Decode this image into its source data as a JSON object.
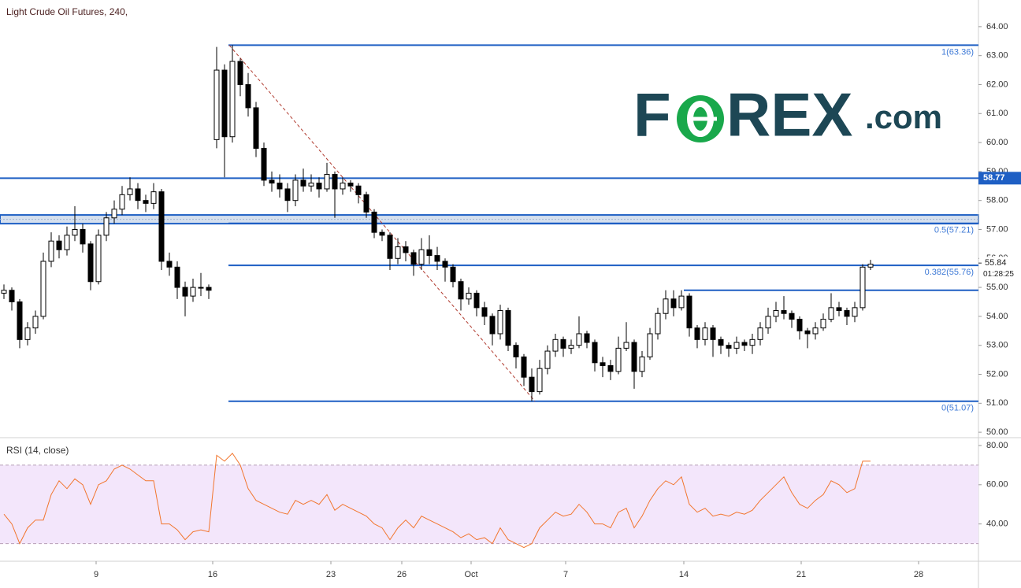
{
  "chart_data": [
    {
      "type": "candlestick",
      "title": "Light Crude Oil Futures, 240,",
      "watermark": [
        "F",
        "REX",
        ".com"
      ],
      "up_color": "#ffffff",
      "down_color": "#000000",
      "line_color": "#1e5fc4",
      "label_color": "#3f7ad6",
      "xlim": [
        0,
        124.2
      ],
      "ylim": [
        49.84,
        64.92
      ],
      "yticks": [
        {
          "value": 50,
          "label": "50.00"
        },
        {
          "value": 51,
          "label": "51.00"
        },
        {
          "value": 52,
          "label": "52.00"
        },
        {
          "value": 53,
          "label": "53.00"
        },
        {
          "value": 54,
          "label": "54.00"
        },
        {
          "value": 55,
          "label": "55.00"
        },
        {
          "value": 56,
          "label": "56.00"
        },
        {
          "value": 57,
          "label": "57.00"
        },
        {
          "value": 58,
          "label": "58.00"
        },
        {
          "value": 59,
          "label": "59.00"
        },
        {
          "value": 60,
          "label": "60.00"
        },
        {
          "value": 61,
          "label": "61.00"
        },
        {
          "value": 62,
          "label": "62.00"
        },
        {
          "value": 63,
          "label": "63.00"
        },
        {
          "value": 64,
          "label": "64.00"
        }
      ],
      "levels": [
        {
          "value": 63.36,
          "label": "1(63.36)"
        },
        {
          "value": 57.21,
          "label": "0.5(57.21)"
        },
        {
          "value": 55.76,
          "label": "0.382(55.76)"
        },
        {
          "value": 51.07,
          "label": "0(51.07)"
        }
      ],
      "support": 58.77,
      "resistance": 54.9,
      "zone": [
        57.2,
        57.5
      ],
      "trendline": [
        63.36,
        51.07
      ],
      "last_price": 55.84,
      "countdown": "01:28:25",
      "candles": [
        [
          54.8,
          55.1,
          54.6,
          54.9
        ],
        [
          54.9,
          55.0,
          54.2,
          54.5
        ],
        [
          54.5,
          54.6,
          52.9,
          53.2
        ],
        [
          53.2,
          53.8,
          53.0,
          53.6
        ],
        [
          53.6,
          54.2,
          53.4,
          54.0
        ],
        [
          54.0,
          56.2,
          53.9,
          55.9
        ],
        [
          55.9,
          56.9,
          55.7,
          56.6
        ],
        [
          56.6,
          56.8,
          56.0,
          56.3
        ],
        [
          56.3,
          57.1,
          56.1,
          56.8
        ],
        [
          56.8,
          57.8,
          56.6,
          57.0
        ],
        [
          57.0,
          57.2,
          56.2,
          56.5
        ],
        [
          56.5,
          56.6,
          54.9,
          55.2
        ],
        [
          55.2,
          57.0,
          55.1,
          56.8
        ],
        [
          56.8,
          57.6,
          56.6,
          57.4
        ],
        [
          57.4,
          58.0,
          57.2,
          57.7
        ],
        [
          57.7,
          58.5,
          57.5,
          58.2
        ],
        [
          58.2,
          58.8,
          58.0,
          58.4
        ],
        [
          58.4,
          58.6,
          57.7,
          58.0
        ],
        [
          58.0,
          58.2,
          57.6,
          57.9
        ],
        [
          57.9,
          58.6,
          57.7,
          58.3
        ],
        [
          58.3,
          58.4,
          55.6,
          55.9
        ],
        [
          55.9,
          56.2,
          55.4,
          55.7
        ],
        [
          55.7,
          55.9,
          54.6,
          55.0
        ],
        [
          55.0,
          55.2,
          54.0,
          54.7
        ],
        [
          54.7,
          55.3,
          54.5,
          55.0
        ],
        [
          55.0,
          55.5,
          54.7,
          55.0
        ],
        [
          55.0,
          55.1,
          54.6,
          54.9
        ],
        [
          60.1,
          63.3,
          59.8,
          62.5
        ],
        [
          62.5,
          62.7,
          58.8,
          60.2
        ],
        [
          60.2,
          63.36,
          60.0,
          62.8
        ],
        [
          62.8,
          62.9,
          61.6,
          62.0
        ],
        [
          62.0,
          62.4,
          60.9,
          61.2
        ],
        [
          61.2,
          61.4,
          59.5,
          59.8
        ],
        [
          59.8,
          60.0,
          58.5,
          58.7
        ],
        [
          58.7,
          59.0,
          58.3,
          58.6
        ],
        [
          58.6,
          58.9,
          58.1,
          58.4
        ],
        [
          58.4,
          58.6,
          57.6,
          58.0
        ],
        [
          58.0,
          58.9,
          57.8,
          58.7
        ],
        [
          58.7,
          59.1,
          58.3,
          58.5
        ],
        [
          58.5,
          58.9,
          58.3,
          58.6
        ],
        [
          58.6,
          58.8,
          58.1,
          58.4
        ],
        [
          58.4,
          59.3,
          58.3,
          58.9
        ],
        [
          58.9,
          59.0,
          57.4,
          58.4
        ],
        [
          58.4,
          58.8,
          58.2,
          58.6
        ],
        [
          58.6,
          58.7,
          58.3,
          58.5
        ],
        [
          58.5,
          58.6,
          57.9,
          58.2
        ],
        [
          58.2,
          58.3,
          57.4,
          57.6
        ],
        [
          57.6,
          57.7,
          56.7,
          56.9
        ],
        [
          56.9,
          57.0,
          56.6,
          56.8
        ],
        [
          56.8,
          56.9,
          55.6,
          56.0
        ],
        [
          56.0,
          56.7,
          55.8,
          56.4
        ],
        [
          56.4,
          56.6,
          55.9,
          56.2
        ],
        [
          56.2,
          56.3,
          55.4,
          55.8
        ],
        [
          55.8,
          56.7,
          55.6,
          56.3
        ],
        [
          56.3,
          56.8,
          55.8,
          56.1
        ],
        [
          56.1,
          56.4,
          55.6,
          55.9
        ],
        [
          55.9,
          56.0,
          55.2,
          55.7
        ],
        [
          55.7,
          55.8,
          55.0,
          55.2
        ],
        [
          55.2,
          55.3,
          54.2,
          54.6
        ],
        [
          54.6,
          55.0,
          54.4,
          54.8
        ],
        [
          54.8,
          54.9,
          54.0,
          54.3
        ],
        [
          54.3,
          54.5,
          53.7,
          54.0
        ],
        [
          54.0,
          54.1,
          53.0,
          53.4
        ],
        [
          53.4,
          54.4,
          53.2,
          54.2
        ],
        [
          54.2,
          54.3,
          52.8,
          53.0
        ],
        [
          53.0,
          53.1,
          52.2,
          52.6
        ],
        [
          52.6,
          52.7,
          51.6,
          51.9
        ],
        [
          51.9,
          52.2,
          51.07,
          51.4
        ],
        [
          51.4,
          52.5,
          51.3,
          52.2
        ],
        [
          52.2,
          53.0,
          52.0,
          52.8
        ],
        [
          52.8,
          53.4,
          52.6,
          53.2
        ],
        [
          53.2,
          53.3,
          52.6,
          52.9
        ],
        [
          52.9,
          53.2,
          52.7,
          53.0
        ],
        [
          53.0,
          54.0,
          52.9,
          53.4
        ],
        [
          53.4,
          53.5,
          52.9,
          53.1
        ],
        [
          53.1,
          53.2,
          52.1,
          52.4
        ],
        [
          52.4,
          52.6,
          51.9,
          52.3
        ],
        [
          52.3,
          52.5,
          51.8,
          52.1
        ],
        [
          52.1,
          53.3,
          52.0,
          52.9
        ],
        [
          52.9,
          53.8,
          52.8,
          53.1
        ],
        [
          53.1,
          53.2,
          51.5,
          52.1
        ],
        [
          52.1,
          52.8,
          51.9,
          52.6
        ],
        [
          52.6,
          53.6,
          52.5,
          53.4
        ],
        [
          53.4,
          54.3,
          53.2,
          54.1
        ],
        [
          54.1,
          54.9,
          53.9,
          54.6
        ],
        [
          54.6,
          54.9,
          54.0,
          54.3
        ],
        [
          54.3,
          54.9,
          54.2,
          54.7
        ],
        [
          54.7,
          54.8,
          53.3,
          53.6
        ],
        [
          53.6,
          53.7,
          52.9,
          53.2
        ],
        [
          53.2,
          53.8,
          53.0,
          53.6
        ],
        [
          53.6,
          53.7,
          52.6,
          53.2
        ],
        [
          53.2,
          53.3,
          52.7,
          53.0
        ],
        [
          53.0,
          53.1,
          52.6,
          52.9
        ],
        [
          52.9,
          53.3,
          52.7,
          53.1
        ],
        [
          53.1,
          53.2,
          52.8,
          53.0
        ],
        [
          53.0,
          53.4,
          52.7,
          53.2
        ],
        [
          53.2,
          53.8,
          53.0,
          53.6
        ],
        [
          53.6,
          54.3,
          53.4,
          54.0
        ],
        [
          54.0,
          54.5,
          53.8,
          54.2
        ],
        [
          54.2,
          54.7,
          53.9,
          54.1
        ],
        [
          54.1,
          54.2,
          53.6,
          53.9
        ],
        [
          53.9,
          54.0,
          53.2,
          53.5
        ],
        [
          53.5,
          53.6,
          52.9,
          53.4
        ],
        [
          53.4,
          53.8,
          53.2,
          53.6
        ],
        [
          53.6,
          54.1,
          53.5,
          53.9
        ],
        [
          53.9,
          54.8,
          53.8,
          54.3
        ],
        [
          54.3,
          54.5,
          54.0,
          54.2
        ],
        [
          54.2,
          54.3,
          53.7,
          54.0
        ],
        [
          54.0,
          54.5,
          53.8,
          54.3
        ],
        [
          54.3,
          55.8,
          54.2,
          55.7
        ],
        [
          55.7,
          55.95,
          55.6,
          55.8
        ]
      ]
    },
    {
      "type": "line",
      "title": "RSI (14, close)",
      "color": "#f2762e",
      "band": [
        30,
        70
      ],
      "band_color": "#f3e6fb",
      "xlim": [
        0,
        124.2
      ],
      "ylim": [
        21.4,
        83.6
      ],
      "yticks": [
        {
          "value": 40,
          "label": "40.00"
        },
        {
          "value": 60,
          "label": "60.00"
        },
        {
          "value": 80,
          "label": "80.00"
        }
      ],
      "xticks": [
        {
          "value": 12.2,
          "label": "9"
        },
        {
          "value": 27,
          "label": "16"
        },
        {
          "value": 42,
          "label": "23"
        },
        {
          "value": 51,
          "label": "26"
        },
        {
          "value": 59.8,
          "label": "Oct"
        },
        {
          "value": 71.8,
          "label": "7"
        },
        {
          "value": 86.8,
          "label": "14"
        },
        {
          "value": 101.7,
          "label": "21"
        },
        {
          "value": 116.6,
          "label": "28"
        }
      ],
      "values": [
        45,
        40,
        30,
        38,
        42,
        42,
        55,
        62,
        58,
        63,
        60,
        50,
        60,
        62,
        68,
        70,
        68,
        65,
        62,
        62,
        40,
        40,
        37,
        32,
        36,
        37,
        36,
        75,
        72,
        76,
        70,
        58,
        52,
        50,
        48,
        46,
        45,
        52,
        50,
        52,
        50,
        55,
        47,
        50,
        48,
        46,
        44,
        40,
        38,
        32,
        38,
        42,
        38,
        44,
        42,
        40,
        38,
        36,
        33,
        35,
        32,
        33,
        30,
        38,
        32,
        30,
        28,
        30,
        38,
        42,
        46,
        44,
        45,
        50,
        46,
        40,
        40,
        38,
        46,
        48,
        38,
        44,
        52,
        58,
        62,
        60,
        64,
        50,
        46,
        48,
        44,
        45,
        44,
        46,
        45,
        47,
        52,
        56,
        60,
        64,
        56,
        50,
        48,
        52,
        55,
        62,
        60,
        56,
        58,
        72,
        72
      ]
    }
  ]
}
